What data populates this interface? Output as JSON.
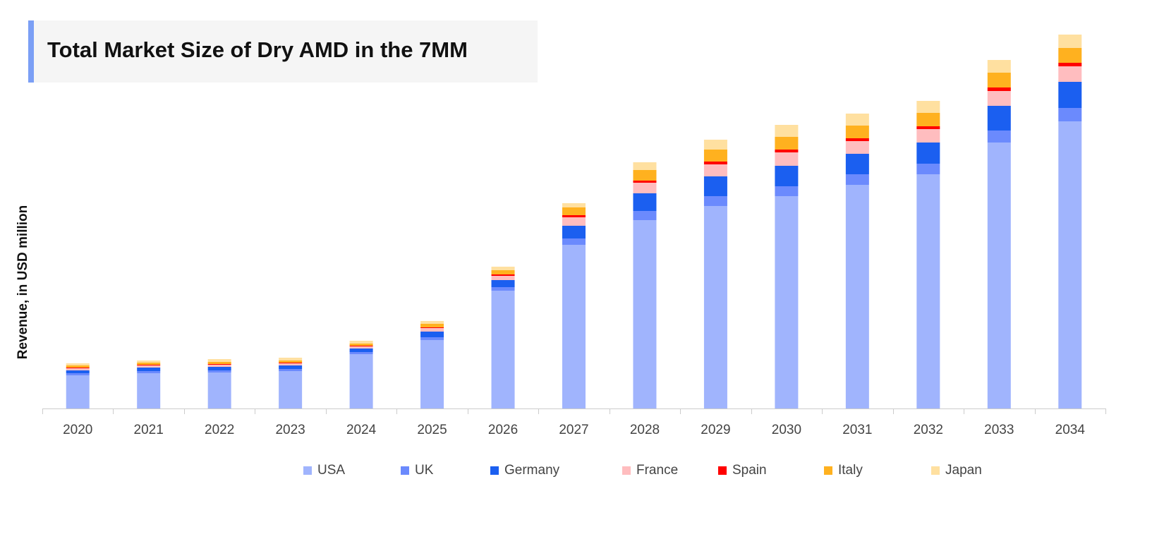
{
  "chart_data": {
    "type": "bar",
    "stacked": true,
    "title": "Total Market Size of Dry AMD in the 7MM",
    "xlabel": "",
    "ylabel": "Revenue, in USD million",
    "y_tick_labels_shown": false,
    "ylim": [
      0,
      540
    ],
    "grid": false,
    "legend_position": "bottom",
    "categories": [
      "2020",
      "2021",
      "2022",
      "2023",
      "2024",
      "2025",
      "2026",
      "2027",
      "2028",
      "2029",
      "2030",
      "2031",
      "2032",
      "2033",
      "2034"
    ],
    "series": [
      {
        "name": "USA",
        "color": "#a0b4fd",
        "values": [
          47,
          50,
          51,
          53,
          77,
          97,
          167,
          232,
          267,
          287,
          301,
          317,
          332,
          377,
          407
        ]
      },
      {
        "name": "UK",
        "color": "#6b8afd",
        "values": [
          3,
          3,
          3,
          3,
          3,
          4,
          5,
          9,
          13,
          14,
          14,
          15,
          15,
          17,
          19
        ]
      },
      {
        "name": "Germany",
        "color": "#1b5ff0",
        "values": [
          4,
          5,
          5,
          5,
          5,
          8,
          10,
          18,
          25,
          28,
          29,
          29,
          30,
          35,
          37
        ]
      },
      {
        "name": "France",
        "color": "#ffbdbf",
        "values": [
          3,
          3,
          3,
          3,
          3,
          5,
          6,
          12,
          15,
          17,
          19,
          18,
          19,
          21,
          22
        ]
      },
      {
        "name": "Spain",
        "color": "#ff0000",
        "values": [
          1,
          1,
          1,
          1,
          1,
          1,
          2,
          3,
          3,
          4,
          4,
          4,
          4,
          5,
          5
        ]
      },
      {
        "name": "Italy",
        "color": "#ffb11f",
        "values": [
          3,
          3,
          3,
          3,
          3,
          5,
          6,
          11,
          15,
          17,
          18,
          18,
          19,
          21,
          21
        ]
      },
      {
        "name": "Japan",
        "color": "#ffe0a0",
        "values": [
          3,
          3,
          4,
          4,
          4,
          4,
          5,
          6,
          11,
          14,
          17,
          17,
          17,
          18,
          19
        ]
      }
    ]
  }
}
